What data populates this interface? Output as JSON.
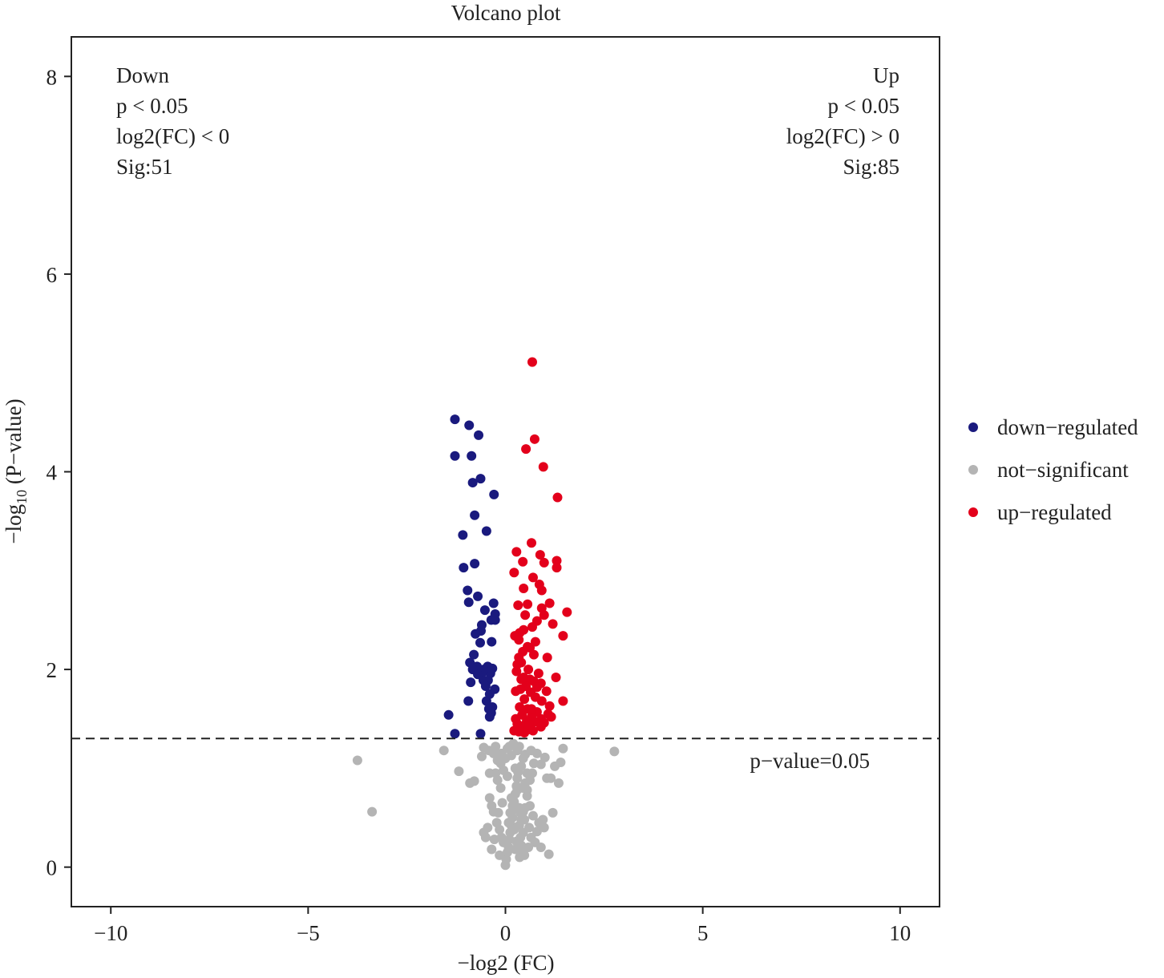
{
  "chart_data": {
    "type": "scatter",
    "title": "Volcano plot",
    "xlabel": "−log2 (FC)",
    "ylabel_main": "−log",
    "ylabel_sub": "10",
    "ylabel_rest": " (P−value)",
    "xlim": [
      -11,
      11
    ],
    "ylim": [
      -0.4,
      8.4
    ],
    "x_ticks": [
      -10,
      -5,
      0,
      5,
      10
    ],
    "x_tick_labels": [
      "−10",
      "−5",
      "0",
      "5",
      "10"
    ],
    "y_ticks": [
      0,
      2,
      4,
      6,
      8
    ],
    "y_tick_labels": [
      "0",
      "2",
      "4",
      "6",
      "8"
    ],
    "grid": false,
    "legend_position": "right",
    "threshold": {
      "y": 1.301,
      "label": "p−value=0.05"
    },
    "annotations": {
      "down": [
        "Down",
        "p < 0.05",
        "log2(FC) < 0",
        "Sig:51"
      ],
      "up": [
        "Up",
        "p < 0.05",
        "log2(FC) > 0",
        "Sig:85"
      ]
    },
    "colors": {
      "down": "#1a1a7e",
      "ns": "#b4b4b4",
      "up": "#e3001b"
    },
    "series": [
      {
        "name": "down−regulated",
        "color": "#1a1a7e",
        "points": [
          [
            -1.28,
            4.53
          ],
          [
            -0.92,
            4.47
          ],
          [
            -0.68,
            4.37
          ],
          [
            -1.28,
            4.16
          ],
          [
            -0.86,
            4.16
          ],
          [
            -0.63,
            3.93
          ],
          [
            -0.83,
            3.89
          ],
          [
            -0.29,
            3.77
          ],
          [
            -0.78,
            3.56
          ],
          [
            -0.48,
            3.4
          ],
          [
            -1.08,
            3.36
          ],
          [
            -0.78,
            3.07
          ],
          [
            -1.06,
            3.03
          ],
          [
            -0.96,
            2.8
          ],
          [
            -0.7,
            2.74
          ],
          [
            -0.3,
            2.67
          ],
          [
            -0.93,
            2.68
          ],
          [
            -0.26,
            2.56
          ],
          [
            -0.6,
            2.45
          ],
          [
            -0.36,
            2.5
          ],
          [
            -0.26,
            2.5
          ],
          [
            -0.62,
            2.39
          ],
          [
            -0.76,
            2.36
          ],
          [
            -0.64,
            2.27
          ],
          [
            -0.9,
            2.07
          ],
          [
            -0.45,
            2.03
          ],
          [
            -0.72,
            2.03
          ],
          [
            -0.83,
            2.0
          ],
          [
            -0.33,
            2.01
          ],
          [
            -0.38,
            1.96
          ],
          [
            -0.58,
            1.97
          ],
          [
            -0.44,
            1.89
          ],
          [
            -0.88,
            1.87
          ],
          [
            -0.56,
            1.89
          ],
          [
            -0.27,
            1.8
          ],
          [
            -0.5,
            1.83
          ],
          [
            -0.94,
            1.68
          ],
          [
            -0.48,
            1.68
          ],
          [
            -0.33,
            1.62
          ],
          [
            -0.36,
            1.56
          ],
          [
            -0.4,
            1.52
          ],
          [
            -1.44,
            1.54
          ],
          [
            -1.28,
            1.35
          ],
          [
            -0.63,
            1.35
          ],
          [
            -0.55,
            2.0
          ],
          [
            -0.7,
            1.95
          ],
          [
            -0.4,
            1.75
          ],
          [
            -0.8,
            2.15
          ],
          [
            -0.35,
            2.28
          ],
          [
            -0.52,
            2.6
          ],
          [
            -0.42,
            1.6
          ]
        ]
      },
      {
        "name": "not−significant",
        "color": "#b4b4b4",
        "points": [
          [
            -3.75,
            1.08
          ],
          [
            -3.38,
            0.56
          ],
          [
            2.76,
            1.17
          ],
          [
            -1.56,
            1.18
          ],
          [
            -1.18,
            0.97
          ],
          [
            1.46,
            1.2
          ],
          [
            1.4,
            1.06
          ],
          [
            1.1,
            0.13
          ],
          [
            -0.9,
            0.85
          ],
          [
            -0.79,
            0.87
          ],
          [
            -0.6,
            1.12
          ],
          [
            -0.55,
            1.21
          ],
          [
            -0.42,
            1.18
          ],
          [
            -0.3,
            1.15
          ],
          [
            -0.25,
            1.22
          ],
          [
            -0.2,
            1.08
          ],
          [
            -0.12,
            1.05
          ],
          [
            0.05,
            1.2
          ],
          [
            0.15,
            1.13
          ],
          [
            0.25,
            1.0
          ],
          [
            0.35,
            1.22
          ],
          [
            0.45,
            1.1
          ],
          [
            0.55,
            0.95
          ],
          [
            0.65,
            1.18
          ],
          [
            0.8,
            1.15
          ],
          [
            0.9,
            1.04
          ],
          [
            1.0,
            1.11
          ],
          [
            1.15,
            0.9
          ],
          [
            1.25,
            1.02
          ],
          [
            1.35,
            0.85
          ],
          [
            1.2,
            0.55
          ],
          [
            0.95,
            0.48
          ],
          [
            -0.4,
            0.7
          ],
          [
            -0.35,
            0.62
          ],
          [
            -0.3,
            0.56
          ],
          [
            -0.22,
            0.45
          ],
          [
            -0.15,
            0.38
          ],
          [
            -0.1,
            0.3
          ],
          [
            -0.05,
            0.25
          ],
          [
            0.0,
            0.02
          ],
          [
            0.02,
            0.08
          ],
          [
            0.05,
            0.15
          ],
          [
            0.08,
            0.2
          ],
          [
            0.1,
            0.28
          ],
          [
            0.12,
            0.35
          ],
          [
            0.15,
            0.42
          ],
          [
            0.18,
            0.5
          ],
          [
            0.2,
            0.58
          ],
          [
            0.22,
            0.66
          ],
          [
            0.25,
            0.74
          ],
          [
            0.28,
            0.82
          ],
          [
            0.3,
            0.9
          ],
          [
            0.32,
            0.96
          ],
          [
            0.35,
            0.42
          ],
          [
            0.38,
            0.3
          ],
          [
            0.4,
            0.22
          ],
          [
            0.42,
            0.15
          ],
          [
            0.45,
            0.35
          ],
          [
            0.48,
            0.48
          ],
          [
            0.5,
            0.6
          ],
          [
            0.55,
            0.72
          ],
          [
            0.6,
            0.4
          ],
          [
            0.65,
            0.3
          ],
          [
            0.7,
            0.52
          ],
          [
            0.75,
            0.25
          ],
          [
            0.8,
            0.36
          ],
          [
            0.85,
            0.45
          ],
          [
            0.9,
            0.2
          ],
          [
            -0.45,
            0.4
          ],
          [
            -0.5,
            0.3
          ],
          [
            -0.55,
            0.35
          ],
          [
            -0.2,
            0.88
          ],
          [
            -0.25,
            0.95
          ],
          [
            -0.12,
            0.8
          ],
          [
            -0.08,
            0.65
          ],
          [
            -0.18,
            0.55
          ],
          [
            -0.28,
            0.28
          ],
          [
            -0.35,
            0.18
          ],
          [
            -0.15,
            0.12
          ],
          [
            0.08,
            0.45
          ],
          [
            0.12,
            0.55
          ],
          [
            0.18,
            0.62
          ],
          [
            0.22,
            0.38
          ],
          [
            0.28,
            0.26
          ],
          [
            0.32,
            0.18
          ],
          [
            0.36,
            0.1
          ],
          [
            0.4,
            0.48
          ],
          [
            0.45,
            0.56
          ],
          [
            0.5,
            0.85
          ],
          [
            0.55,
            0.78
          ],
          [
            0.62,
            0.88
          ],
          [
            0.68,
            0.95
          ],
          [
            0.72,
            1.05
          ],
          [
            0.3,
            1.18
          ],
          [
            0.2,
            1.25
          ],
          [
            0.1,
            1.22
          ],
          [
            0.4,
            1.02
          ],
          [
            0.5,
            1.14
          ],
          [
            -0.05,
            0.98
          ],
          [
            0.05,
            0.92
          ],
          [
            0.15,
            0.7
          ],
          [
            0.25,
            0.18
          ],
          [
            0.35,
            0.6
          ],
          [
            -0.4,
            0.95
          ],
          [
            0.58,
            0.2
          ],
          [
            0.48,
            0.12
          ],
          [
            0.38,
            0.55
          ],
          [
            0.62,
            0.62
          ],
          [
            1.05,
            0.9
          ],
          [
            0.98,
            0.4
          ],
          [
            -0.1,
            1.15
          ],
          [
            0.0,
            1.1
          ],
          [
            0.3,
            0.78
          ],
          [
            0.45,
            0.8
          ]
        ]
      },
      {
        "name": "up−regulated",
        "color": "#e3001b",
        "points": [
          [
            0.68,
            5.11
          ],
          [
            0.74,
            4.33
          ],
          [
            0.52,
            4.23
          ],
          [
            0.96,
            4.05
          ],
          [
            1.32,
            3.74
          ],
          [
            0.66,
            3.28
          ],
          [
            0.28,
            3.19
          ],
          [
            0.88,
            3.16
          ],
          [
            1.3,
            3.1
          ],
          [
            0.44,
            3.09
          ],
          [
            0.98,
            3.08
          ],
          [
            1.3,
            3.03
          ],
          [
            0.22,
            2.98
          ],
          [
            0.7,
            2.93
          ],
          [
            0.86,
            2.86
          ],
          [
            0.92,
            2.8
          ],
          [
            0.46,
            2.82
          ],
          [
            0.32,
            2.65
          ],
          [
            0.56,
            2.66
          ],
          [
            1.12,
            2.67
          ],
          [
            0.92,
            2.62
          ],
          [
            0.98,
            2.55
          ],
          [
            1.56,
            2.58
          ],
          [
            0.8,
            2.49
          ],
          [
            1.2,
            2.46
          ],
          [
            0.68,
            2.43
          ],
          [
            0.46,
            2.4
          ],
          [
            0.36,
            2.37
          ],
          [
            0.24,
            2.34
          ],
          [
            1.46,
            2.34
          ],
          [
            0.34,
            2.3
          ],
          [
            0.56,
            2.23
          ],
          [
            0.62,
            2.22
          ],
          [
            0.44,
            2.18
          ],
          [
            0.72,
            2.15
          ],
          [
            0.34,
            2.12
          ],
          [
            1.06,
            2.12
          ],
          [
            0.4,
            2.07
          ],
          [
            0.58,
            2.0
          ],
          [
            0.28,
            1.98
          ],
          [
            0.84,
            1.96
          ],
          [
            0.46,
            1.92
          ],
          [
            0.62,
            1.9
          ],
          [
            0.72,
            1.88
          ],
          [
            1.28,
            1.92
          ],
          [
            0.9,
            1.86
          ],
          [
            0.52,
            1.83
          ],
          [
            0.38,
            1.8
          ],
          [
            0.26,
            1.78
          ],
          [
            0.64,
            1.77
          ],
          [
            1.04,
            1.78
          ],
          [
            0.76,
            1.72
          ],
          [
            0.48,
            1.7
          ],
          [
            0.92,
            1.68
          ],
          [
            1.46,
            1.68
          ],
          [
            1.12,
            1.63
          ],
          [
            0.36,
            1.62
          ],
          [
            0.56,
            1.6
          ],
          [
            0.8,
            1.57
          ],
          [
            1.08,
            1.55
          ],
          [
            0.42,
            1.54
          ],
          [
            0.66,
            1.52
          ],
          [
            0.9,
            1.5
          ],
          [
            1.16,
            1.52
          ],
          [
            0.26,
            1.5
          ],
          [
            0.54,
            1.48
          ],
          [
            0.74,
            1.47
          ],
          [
            0.98,
            1.46
          ],
          [
            0.3,
            1.45
          ],
          [
            0.46,
            1.43
          ],
          [
            0.62,
            1.41
          ],
          [
            0.38,
            1.4
          ],
          [
            0.56,
            1.39
          ],
          [
            0.22,
            1.38
          ],
          [
            0.7,
            1.38
          ],
          [
            0.9,
            1.42
          ],
          [
            0.48,
            1.36
          ],
          [
            0.34,
            1.37
          ],
          [
            0.6,
            1.44
          ],
          [
            0.8,
            1.82
          ],
          [
            0.5,
            2.55
          ],
          [
            0.3,
            2.05
          ],
          [
            0.66,
            1.6
          ],
          [
            0.4,
            1.9
          ],
          [
            0.76,
            2.28
          ]
        ]
      }
    ]
  }
}
